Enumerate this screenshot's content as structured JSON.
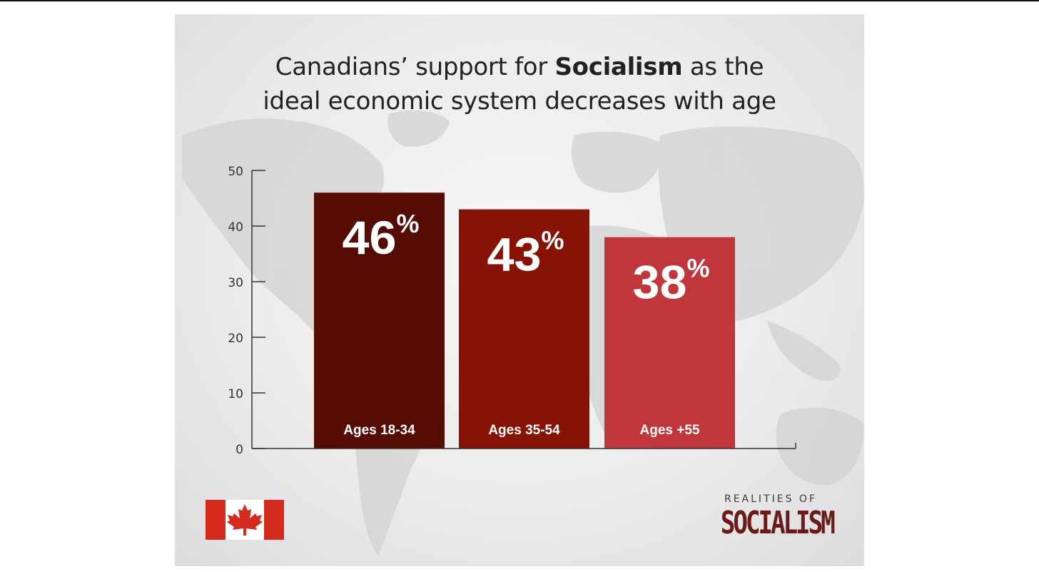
{
  "title": {
    "part1": "Canadians’ support for",
    "bold": "Socialism",
    "part2": "as the",
    "line2": "ideal economic system decreases with age"
  },
  "chart_data": {
    "type": "bar",
    "title": "Canadians’ support for Socialism as the ideal economic system decreases with age",
    "categories": [
      "Ages 18-34",
      "Ages 35-54",
      "Ages +55"
    ],
    "values": [
      46,
      43,
      38
    ],
    "value_labels": [
      "46",
      "43",
      "38"
    ],
    "value_suffix": "%",
    "colors": [
      "#540c05",
      "#861305",
      "#c0373b"
    ],
    "yticks": [
      0,
      10,
      20,
      30,
      40,
      50
    ],
    "ylim": [
      0,
      50
    ],
    "xlabel": "",
    "ylabel": "",
    "grid": false
  },
  "logo": {
    "top": "REALITIES OF",
    "main": "SOCIALISM"
  },
  "colors": {
    "flag_red": "#d52b1e",
    "title_text": "#222222",
    "axis": "#333333",
    "logo_red": "#6b1a1a"
  }
}
